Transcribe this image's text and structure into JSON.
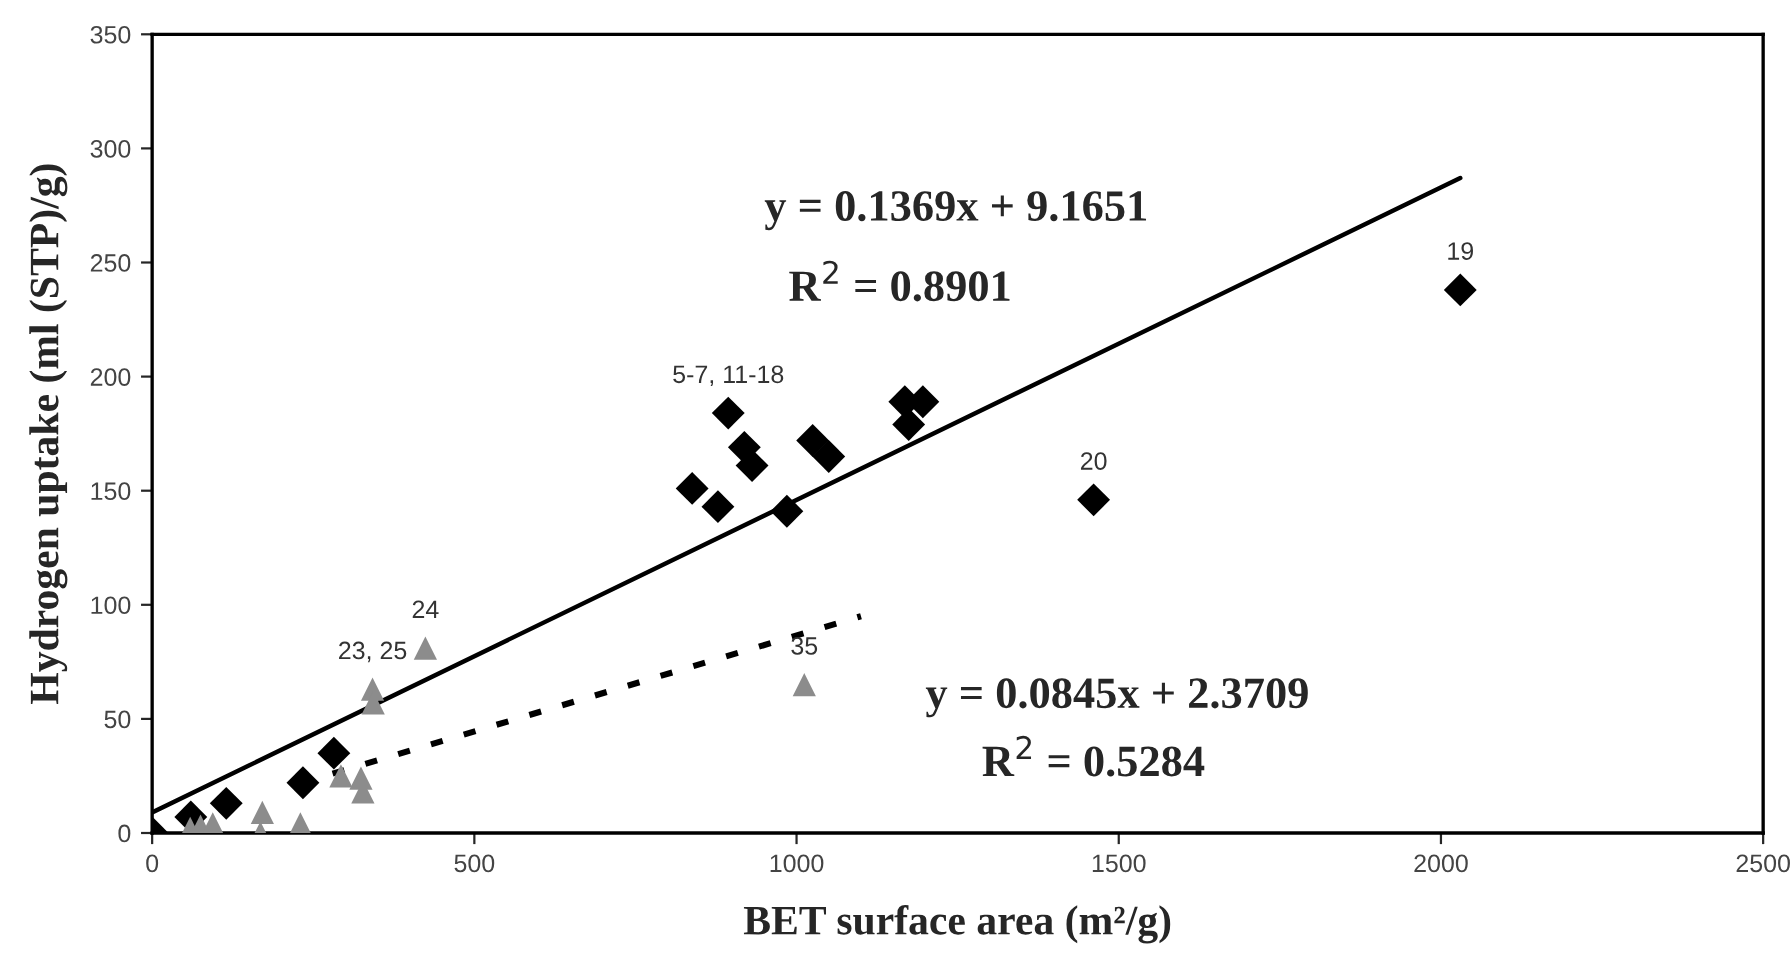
{
  "chart_data": {
    "type": "scatter",
    "xlabel": "BET surface area (m²/g)",
    "ylabel": "Hydrogen uptake (ml (STP)/g)",
    "xlim": [
      0,
      2500
    ],
    "xticks": [
      0,
      500,
      1000,
      1500,
      2000,
      2500
    ],
    "ylim": [
      0,
      350
    ],
    "yticks": [
      0,
      50,
      100,
      150,
      200,
      250,
      300,
      350
    ],
    "grid": false,
    "legend": false,
    "series": [
      {
        "marker": "diamond",
        "color": "#000000",
        "x": [
          0,
          60,
          115,
          234,
          282,
          838,
          878,
          894,
          919,
          931,
          985,
          1025,
          1050,
          1168,
          1174,
          1196,
          1461,
          2030
        ],
        "values": [
          0,
          7,
          13,
          22,
          35,
          151,
          143,
          184,
          169,
          161,
          141,
          172,
          165,
          189,
          179,
          189,
          146,
          238
        ]
      },
      {
        "marker": "triangle",
        "color": "#8c8c8c",
        "x": [
          59,
          75,
          94,
          168,
          171,
          230,
          293,
          324,
          327,
          342,
          343,
          424,
          1012
        ],
        "values": [
          2,
          3,
          4,
          0,
          9,
          4,
          25,
          24,
          18,
          63,
          57,
          81,
          65
        ]
      },
      {
        "type": "line",
        "line_style": "solid",
        "color": "#000000",
        "x": [
          0,
          2030
        ],
        "values": [
          9,
          287
        ]
      },
      {
        "type": "line",
        "line_style": "dotted",
        "color": "#000000",
        "x": [
          280,
          1100
        ],
        "values": [
          26,
          95
        ]
      }
    ],
    "annotations": [
      "y = 0.1369x + 9.1651",
      "R$^{2}$ = 0.8901",
      "y = 0.0845x + 2.3709",
      "R$^{2}$ = 0.5284",
      {
        "text": "5-7, 11-18",
        "x": 894,
        "y": 184
      },
      {
        "text": "19",
        "x": 2030,
        "y": 238
      },
      {
        "text": "20",
        "x": 1461,
        "y": 146
      },
      {
        "text": "23, 25",
        "x": 342,
        "y": 63
      },
      {
        "text": "24",
        "x": 424,
        "y": 81
      },
      {
        "text": "35",
        "x": 1012,
        "y": 65
      }
    ]
  }
}
